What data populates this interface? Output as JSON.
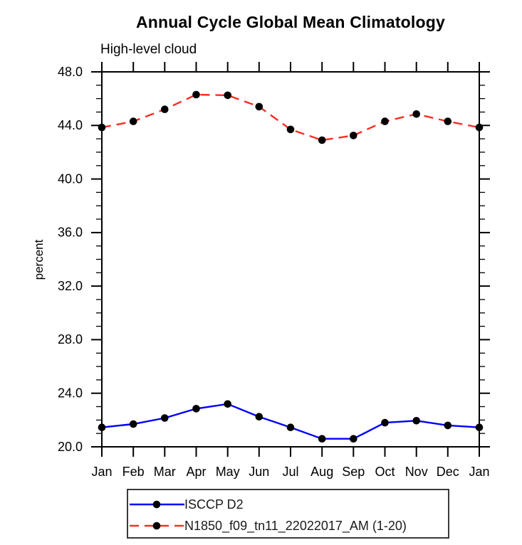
{
  "chart_data": {
    "type": "line",
    "title": "Annual Cycle Global Mean Climatology",
    "subtitle": "High-level cloud",
    "ylabel": "percent",
    "xlabel": "",
    "categories": [
      "Jan",
      "Feb",
      "Mar",
      "Apr",
      "May",
      "Jun",
      "Jul",
      "Aug",
      "Sep",
      "Oct",
      "Nov",
      "Dec",
      "Jan"
    ],
    "ylim": [
      20.0,
      48.0
    ],
    "ytick_major_step": 4.0,
    "ytick_minor_step": 1.0,
    "ytick_labels": [
      "20.0",
      "24.0",
      "28.0",
      "32.0",
      "36.0",
      "40.0",
      "44.0",
      "48.0"
    ],
    "grid": false,
    "legend_position": "bottom-center",
    "axis_color": "#000000",
    "text_color": "#000000",
    "background_color": "#ffffff",
    "marker_color": "#000000",
    "series": [
      {
        "name": "ISCCP D2",
        "color": "#0000ff",
        "line_style": "solid",
        "marker": "filled-circle",
        "values": [
          21.45,
          21.7,
          22.15,
          22.85,
          23.2,
          22.25,
          21.45,
          20.6,
          20.6,
          21.8,
          21.95,
          21.6,
          21.45
        ]
      },
      {
        "name": "N1850_f09_tn11_22022017_AM (1-20)",
        "color": "#fa2d22",
        "line_style": "dashed",
        "marker": "filled-circle",
        "values": [
          43.85,
          44.3,
          45.2,
          46.3,
          46.25,
          45.4,
          43.7,
          42.9,
          43.25,
          44.3,
          44.85,
          44.3,
          43.85
        ]
      }
    ]
  }
}
